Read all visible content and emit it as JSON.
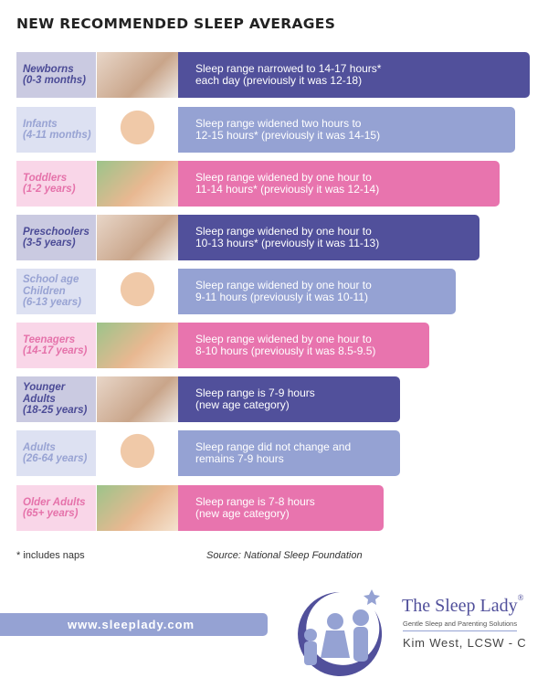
{
  "title": "NEW RECOMMENDED SLEEP AVERAGES",
  "colors": {
    "dark": "#51509b",
    "light": "#95a2d3",
    "pink": "#e874ae"
  },
  "rows": [
    {
      "theme": "dark",
      "label_lines": [
        "Newborns",
        "(0-3 months)"
      ],
      "text_lines": [
        "Sleep range narrowed to 14-17 hours*",
        "each day (previously it was 12-18)"
      ],
      "photo": "newborn-photo"
    },
    {
      "theme": "light",
      "label_lines": [
        "Infants",
        "(4-11 months)"
      ],
      "text_lines": [
        "Sleep range widened two hours to",
        "12-15 hours* (previously it was 14-15)"
      ],
      "photo": "infant-photo"
    },
    {
      "theme": "pink",
      "label_lines": [
        "Toddlers",
        "(1-2 years)"
      ],
      "text_lines": [
        "Sleep range widened by one hour to",
        "11-14 hours* (previously it was 12-14)"
      ],
      "photo": "toddler-photo"
    },
    {
      "theme": "dark",
      "label_lines": [
        "Preschoolers",
        "(3-5 years)"
      ],
      "text_lines": [
        "Sleep range widened by one hour to",
        "10-13 hours* (previously it was 11-13)"
      ],
      "photo": "preschooler-photo"
    },
    {
      "theme": "light",
      "label_lines": [
        "School age",
        "Children",
        "(6-13 years)"
      ],
      "text_lines": [
        "Sleep range widened by one hour to",
        "9-11 hours (previously it was 10-11)"
      ],
      "photo": "school-children-photo"
    },
    {
      "theme": "pink",
      "label_lines": [
        "Teenagers",
        "(14-17 years)"
      ],
      "text_lines": [
        "Sleep range widened by one hour to",
        "8-10 hours (previously it was 8.5-9.5)"
      ],
      "photo": "teenager-photo"
    },
    {
      "theme": "dark",
      "label_lines": [
        "Younger",
        "Adults",
        "(18-25 years)"
      ],
      "text_lines": [
        "Sleep range is 7-9 hours",
        "(new age category)"
      ],
      "photo": "young-adult-photo"
    },
    {
      "theme": "light",
      "label_lines": [
        "Adults",
        "(26-64 years)"
      ],
      "text_lines": [
        "Sleep range did not change and",
        "remains 7-9 hours"
      ],
      "photo": "adult-photo"
    },
    {
      "theme": "pink",
      "label_lines": [
        "Older Adults",
        "(65+ years)"
      ],
      "text_lines": [
        "Sleep range is 7-8 hours",
        "(new age category)"
      ],
      "photo": "older-adults-photo"
    }
  ],
  "footnote": "* includes naps",
  "source": "Source: National Sleep Foundation",
  "website": "www.sleeplady.com",
  "brand": {
    "name": "The Sleep Lady",
    "mark": "®",
    "tagline": "Gentle Sleep and Parenting Solutions",
    "author": "Kim West, LCSW - C"
  }
}
